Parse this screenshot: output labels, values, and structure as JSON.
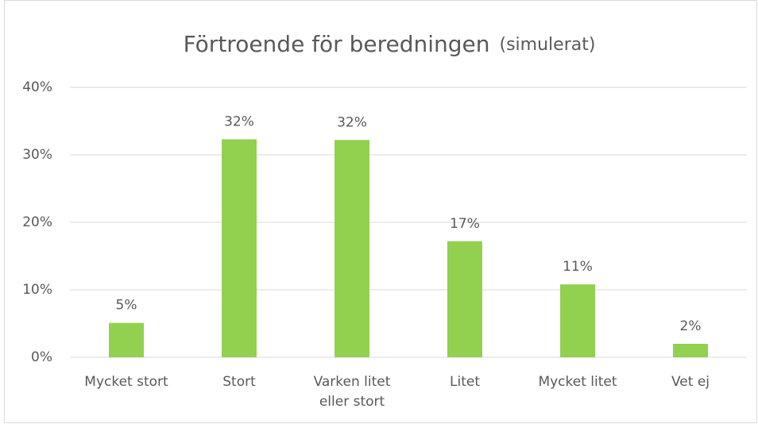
{
  "chart_data": {
    "type": "bar",
    "title": "Förtroende för beredningen",
    "subtitle": "(simulerat)",
    "categories": [
      "Mycket stort",
      "Stort",
      "Varken litet eller stort",
      "Litet",
      "Mycket litet",
      "Vet ej"
    ],
    "values": [
      5.1,
      32.3,
      32.2,
      17.2,
      10.8,
      2.0
    ],
    "value_labels": [
      "5%",
      "32%",
      "32%",
      "17%",
      "11%",
      "2%"
    ],
    "color": "#92d050",
    "ylim": [
      0,
      40
    ],
    "yticks": [
      {
        "value": 0,
        "label": "0%"
      },
      {
        "value": 10,
        "label": "10%"
      },
      {
        "value": 20,
        "label": "20%"
      },
      {
        "value": 30,
        "label": "30%"
      },
      {
        "value": 40,
        "label": "40%"
      }
    ],
    "grid": true
  }
}
